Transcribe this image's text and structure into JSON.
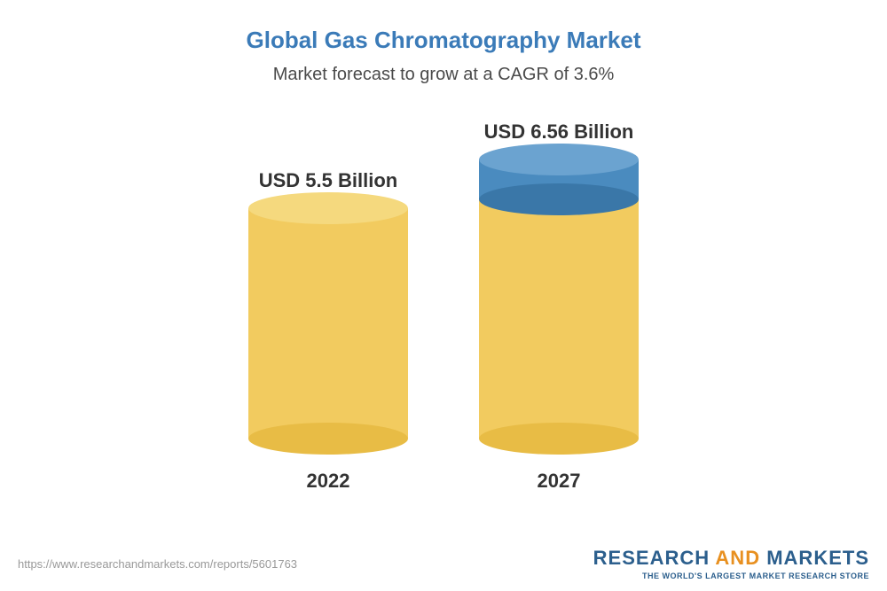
{
  "title": "Global Gas Chromatography Market",
  "subtitle": "Market forecast to grow at a CAGR of 3.6%",
  "chart": {
    "type": "3d-cylinder-bar",
    "bars": [
      {
        "value_label": "USD 5.5 Billion",
        "year": "2022",
        "base_height": 260,
        "base_color_body": "#f2cb5f",
        "base_color_top": "#f5d97e",
        "base_color_bottom": "#e8bc45",
        "cap_height": 0,
        "cap_color_body": "",
        "cap_color_top": "",
        "cap_color_bottom": ""
      },
      {
        "value_label": "USD 6.56 Billion",
        "year": "2027",
        "base_height": 270,
        "base_color_body": "#f2cb5f",
        "base_color_top": "#f5d97e",
        "base_color_bottom": "#e8bc45",
        "cap_height": 45,
        "cap_color_body": "#4a8bbf",
        "cap_color_top": "#6ba3d0",
        "cap_color_bottom": "#3a77a8"
      }
    ],
    "cylinder_width": 180,
    "ellipse_height": 36,
    "gap": 80,
    "value_fontsize": 22,
    "year_fontsize": 22,
    "title_color": "#3b7bb8",
    "subtitle_color": "#4a4a4a",
    "background_color": "#ffffff"
  },
  "footer": {
    "url": "https://www.researchandmarkets.com/reports/5601763",
    "logo": {
      "word1": "RESEARCH",
      "word2": "AND",
      "word3": "MARKETS",
      "tagline": "THE WORLD'S LARGEST MARKET RESEARCH STORE",
      "color_primary": "#2c5f8d",
      "color_accent": "#e89020"
    }
  }
}
